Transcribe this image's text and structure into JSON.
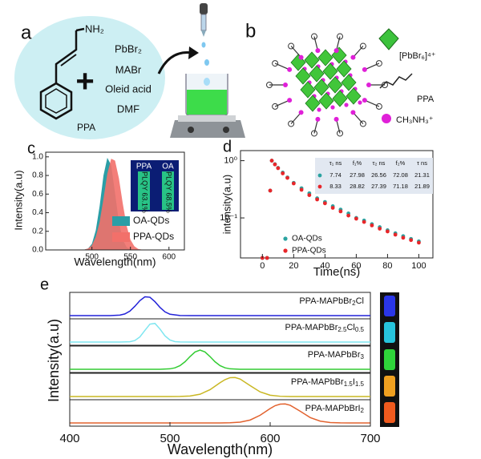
{
  "panel_a": {
    "label": "a",
    "amine": "NH₂",
    "reagents": [
      "PbBr₂",
      "MABr",
      "Oleid acid",
      "DMF"
    ],
    "molecule": "PPA"
  },
  "panel_b": {
    "label": "b",
    "legend": [
      "[PbBr₆]⁴⁺",
      "PPA",
      "CH₃NH₃⁺"
    ]
  },
  "chart_data": [
    {
      "type": "area",
      "panel_label": "c",
      "xlabel": "Wavelength(nm)",
      "ylabel": "Intensity(a.u)",
      "x": [
        480,
        485,
        490,
        495,
        500,
        505,
        510,
        515,
        520,
        525,
        530,
        535,
        540,
        545,
        550,
        555,
        560,
        565,
        570
      ],
      "series": [
        {
          "name": "OA-QDs",
          "color": "#2a9ea6",
          "values": [
            0,
            0,
            0.003,
            0.015,
            0.066,
            0.21,
            0.47,
            0.8,
            0.99,
            0.91,
            0.61,
            0.3,
            0.11,
            0.03,
            0.006,
            0,
            0,
            0,
            0
          ]
        },
        {
          "name": "PPA-QDs",
          "color": "#f2706a",
          "values": [
            0,
            0.001,
            0.003,
            0.015,
            0.049,
            0.14,
            0.3,
            0.55,
            0.82,
            0.98,
            0.96,
            0.77,
            0.5,
            0.26,
            0.11,
            0.04,
            0.011,
            0.003,
            0
          ]
        }
      ],
      "xlim": [
        440,
        620
      ],
      "xticks": [
        500,
        550,
        600
      ],
      "ylim": [
        0,
        1.05
      ],
      "yticks": [
        {
          "value": 0,
          "label": "0.0"
        },
        0.2,
        0.4,
        0.6,
        0.8,
        {
          "value": 1,
          "label": "1.0"
        }
      ],
      "legend": "lower right",
      "inset": {
        "samples": [
          "PPA",
          "OA"
        ],
        "labels": [
          "PLQY 63.1%",
          "PLQY 68.5%"
        ]
      }
    },
    {
      "type": "scatter",
      "panel_label": "d",
      "xlabel": "Time(ns)",
      "ylabel": "intensity(a.u)",
      "x": [
        0,
        3,
        5,
        6,
        8,
        10,
        13,
        16,
        20,
        25,
        30,
        35,
        40,
        45,
        50,
        55,
        60,
        65,
        70,
        75,
        80,
        85,
        90,
        95,
        100
      ],
      "series": [
        {
          "name": "OA-QDs",
          "color": "#2aa3a0",
          "values": [
            0.02,
            0.02,
            0.3,
            1.0,
            0.87,
            0.75,
            0.62,
            0.51,
            0.41,
            0.33,
            0.27,
            0.22,
            0.19,
            0.16,
            0.14,
            0.12,
            0.1,
            0.09,
            0.078,
            0.069,
            0.061,
            0.054,
            0.048,
            0.043,
            0.039
          ]
        },
        {
          "name": "PPA-QDs",
          "color": "#e8262a",
          "values": [
            0.02,
            0.02,
            0.3,
            1.0,
            0.86,
            0.74,
            0.6,
            0.5,
            0.4,
            0.31,
            0.25,
            0.21,
            0.18,
            0.15,
            0.13,
            0.11,
            0.097,
            0.085,
            0.074,
            0.065,
            0.058,
            0.051,
            0.045,
            0.041,
            0.037
          ]
        }
      ],
      "xlim": [
        -14,
        109
      ],
      "xticks": [
        0,
        20,
        40,
        60,
        80,
        100
      ],
      "ylim": [
        0.02,
        1.5
      ],
      "yscale": "log",
      "yticks": [
        {
          "value": 1,
          "label": "10⁰"
        },
        {
          "value": 0.1,
          "label": "10⁻¹"
        }
      ],
      "legend": "lower left",
      "table": {
        "columns": [
          "τ₁ ns",
          "f₁%",
          "τ₂ ns",
          "f₂%",
          "τ ns"
        ],
        "rows": [
          [
            7.74,
            27.98,
            26.56,
            72.08,
            21.31
          ],
          [
            8.33,
            28.82,
            27.39,
            71.18,
            21.89
          ]
        ]
      }
    },
    {
      "type": "ridgeline",
      "panel_label": "e",
      "xlabel": "Wavelength(nm)",
      "ylabel": "Intensity(a.u)",
      "xlim": [
        400,
        700
      ],
      "xticks": [
        400,
        500,
        600,
        700
      ],
      "series": [
        {
          "name": [
            "PPA-MAPbBr",
            "2",
            "Cl"
          ],
          "color": "#2222d8",
          "x": [
            400,
            440,
            450,
            455,
            460,
            465,
            470,
            475,
            480,
            485,
            490,
            495,
            500,
            510,
            520,
            700
          ],
          "values": [
            0,
            0.001,
            0.027,
            0.089,
            0.235,
            0.487,
            0.78,
            0.98,
            0.956,
            0.726,
            0.43,
            0.198,
            0.071,
            0.004,
            0,
            0
          ]
        },
        {
          "name": [
            "PPA-MAPbBr",
            "2.5",
            "Cl",
            "0.5"
          ],
          "color": "#7ee6f0",
          "x": [
            400,
            450,
            460,
            465,
            470,
            475,
            480,
            485,
            490,
            495,
            500,
            505,
            510,
            520,
            700
          ],
          "values": [
            0,
            0,
            0.016,
            0.08,
            0.267,
            0.607,
            0.93,
            0.97,
            0.68,
            0.325,
            0.104,
            0.023,
            0.003,
            0,
            0
          ]
        },
        {
          "name": [
            "PPA-MAPbBr",
            "3"
          ],
          "color": "#33cc33",
          "x": [
            400,
            480,
            490,
            500,
            505,
            510,
            515,
            520,
            525,
            530,
            535,
            540,
            545,
            550,
            555,
            560,
            570,
            580,
            700
          ],
          "values": [
            0,
            0,
            0.001,
            0.024,
            0.076,
            0.19,
            0.39,
            0.66,
            0.9,
            1,
            0.9,
            0.66,
            0.39,
            0.19,
            0.076,
            0.024,
            0.001,
            0,
            0
          ]
        },
        {
          "name": [
            "PPA-MAPbBr",
            "1.5",
            "I",
            "1.5"
          ],
          "color": "#c9b722",
          "x": [
            400,
            500,
            510,
            520,
            530,
            540,
            550,
            555,
            560,
            565,
            570,
            580,
            590,
            600,
            610,
            620,
            630,
            700
          ],
          "values": [
            0,
            0,
            0.004,
            0.027,
            0.119,
            0.356,
            0.72,
            0.88,
            0.98,
            0.99,
            0.91,
            0.57,
            0.24,
            0.069,
            0.013,
            0.002,
            0,
            0
          ]
        },
        {
          "name": [
            "PPA-MAPbBrI",
            "2"
          ],
          "color": "#e2622e",
          "x": [
            400,
            540,
            550,
            560,
            570,
            580,
            590,
            600,
            605,
            610,
            615,
            620,
            630,
            640,
            650,
            660,
            670,
            680,
            700
          ],
          "values": [
            0,
            0,
            0.001,
            0.008,
            0.041,
            0.152,
            0.4,
            0.75,
            0.9,
            0.98,
            0.99,
            0.92,
            0.61,
            0.28,
            0.094,
            0.022,
            0.004,
            0,
            0
          ]
        }
      ]
    }
  ]
}
